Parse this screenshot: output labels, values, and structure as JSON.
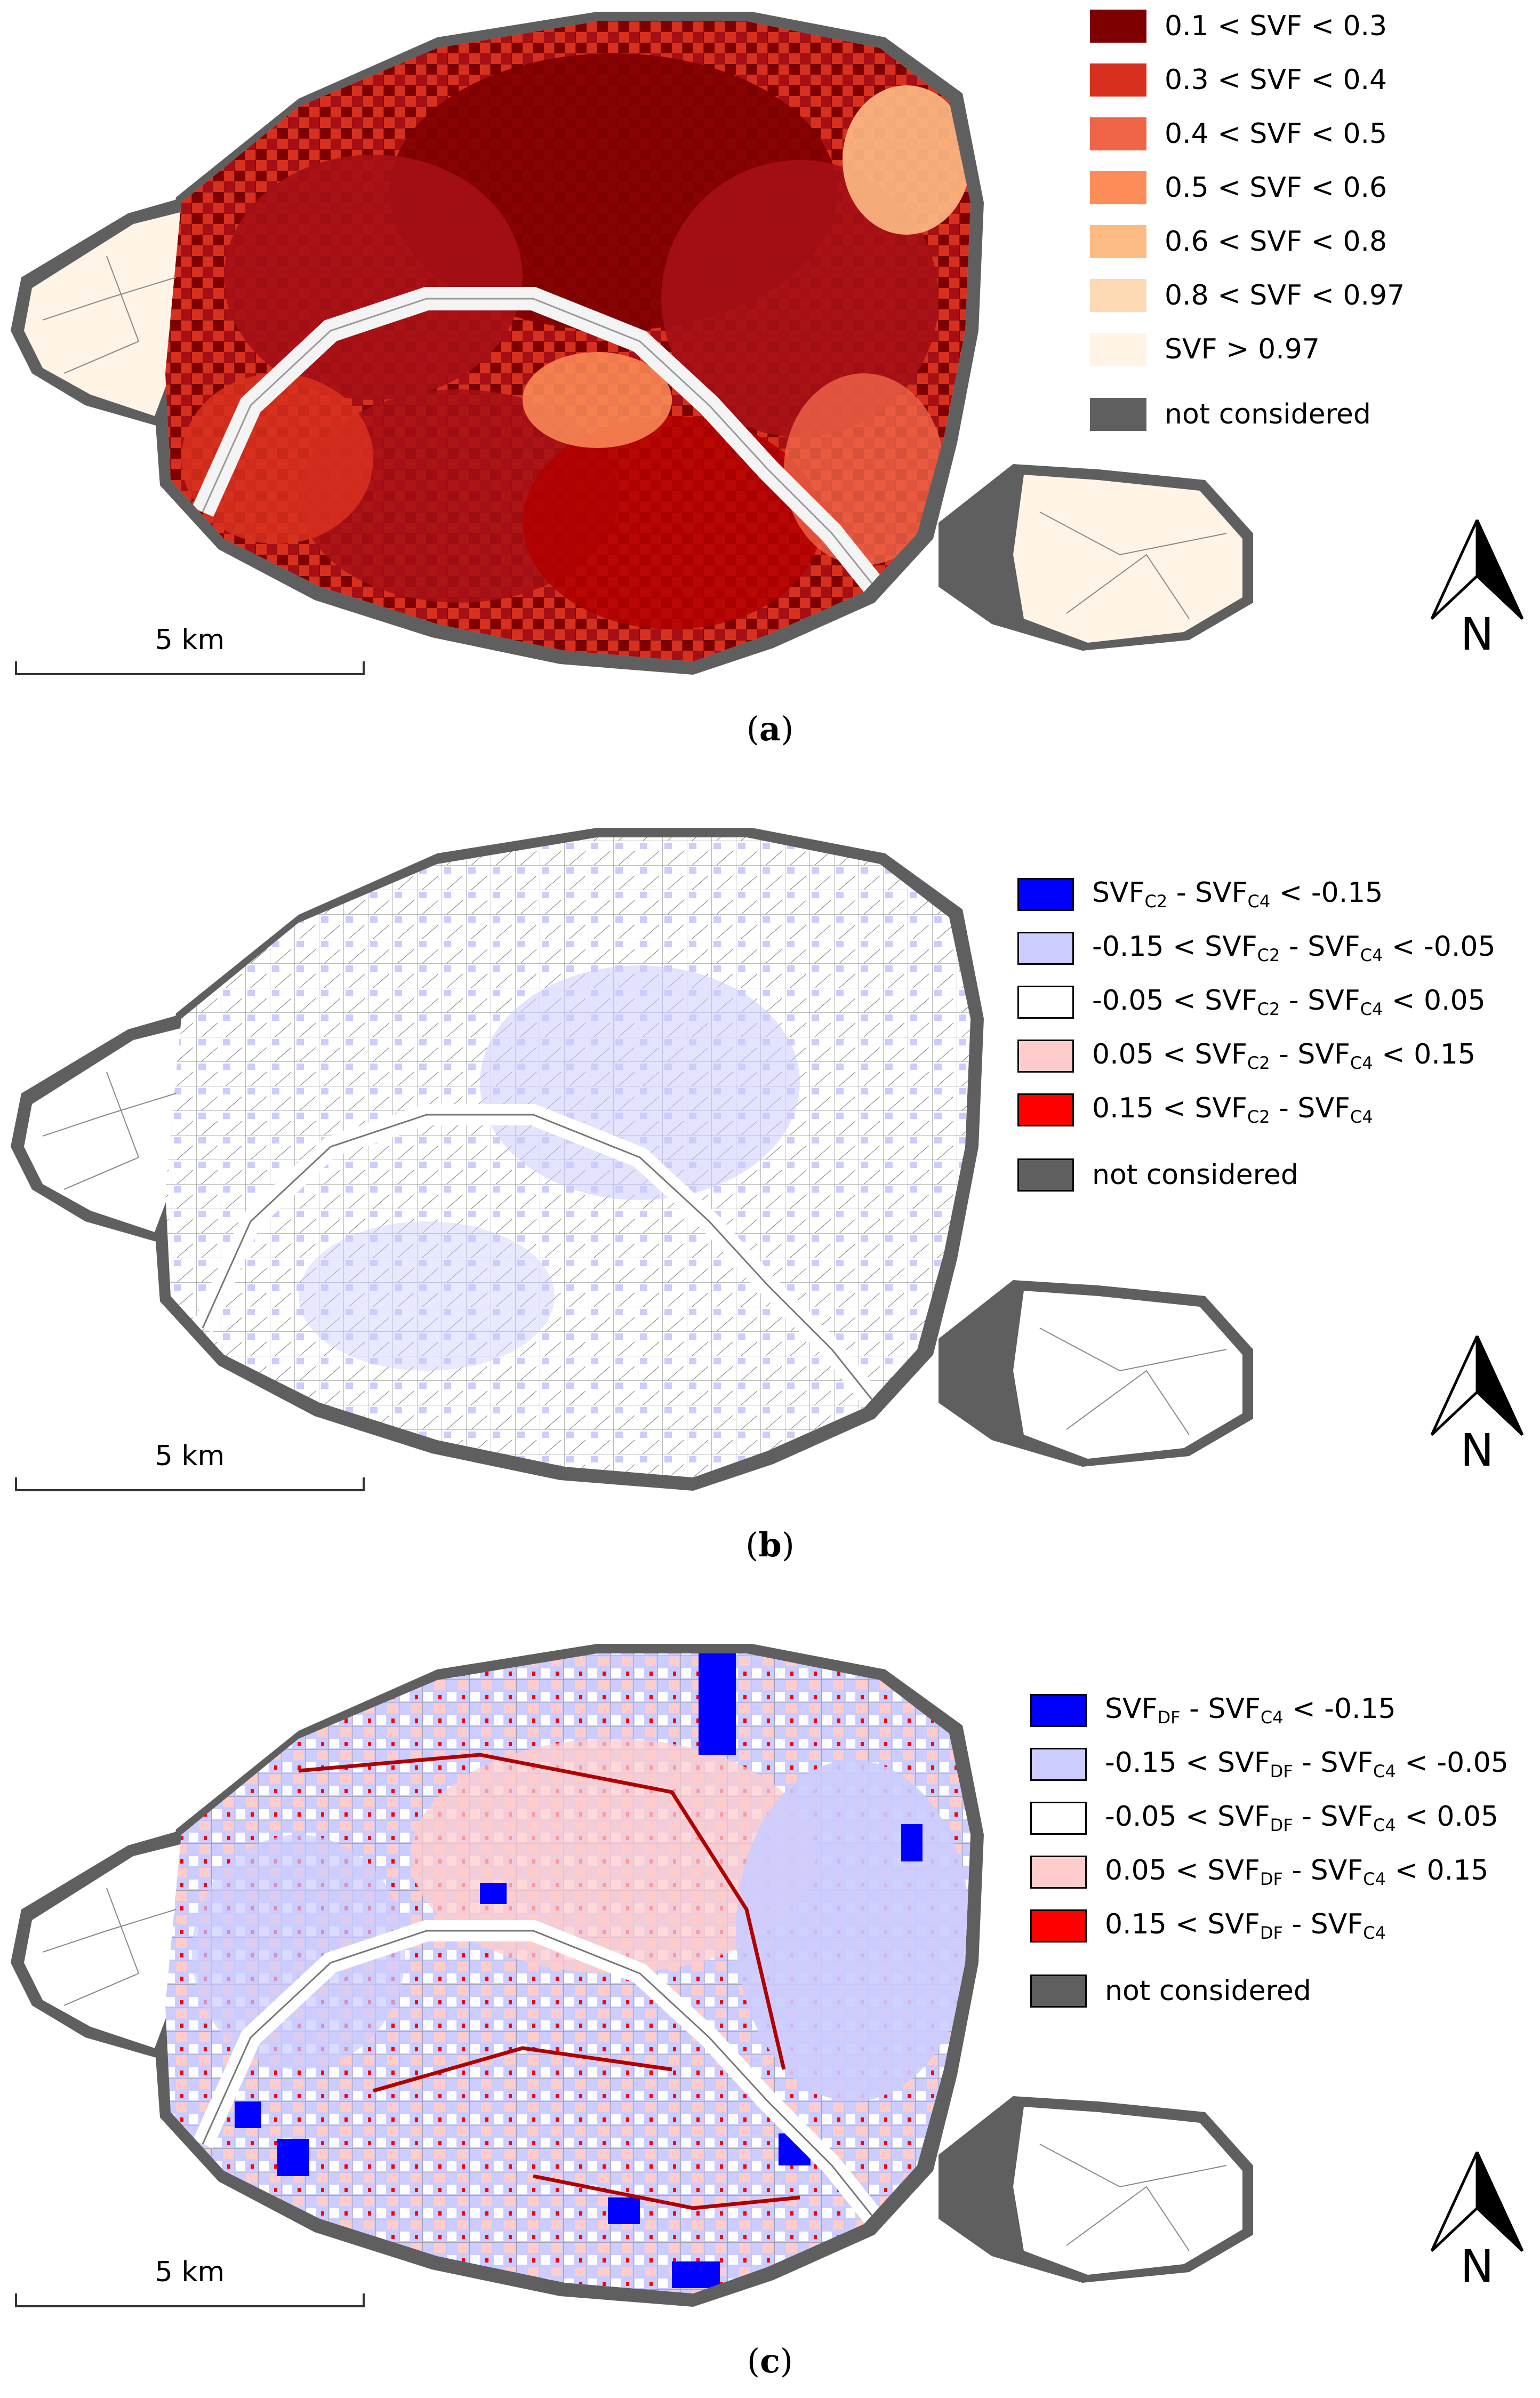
{
  "panels": [
    {
      "id": "a",
      "caption_letter": "a",
      "scale_label": "5 km",
      "north_label": "N",
      "legend": [
        {
          "label": "0.1 < SVF < 0.3",
          "color": "#7f0000"
        },
        {
          "label": "0.3 < SVF < 0.4",
          "color": "#d7301f"
        },
        {
          "label": "0.4 < SVF < 0.5",
          "color": "#ef6548"
        },
        {
          "label": "0.5 < SVF < 0.6",
          "color": "#fc8d59"
        },
        {
          "label": "0.6 < SVF < 0.8",
          "color": "#fdbb84"
        },
        {
          "label": "0.8 < SVF < 0.97",
          "color": "#fdd9b4"
        },
        {
          "label": "SVF > 0.97",
          "color": "#fff4e6"
        },
        {
          "label": "not considered",
          "color": "#5f5f5f"
        }
      ]
    },
    {
      "id": "b",
      "caption_letter": "b",
      "scale_label": "5 km",
      "north_label": "N",
      "legend": [
        {
          "color": "#0000ff",
          "parts": [
            "SVF",
            "C2",
            " - SVF",
            "C4",
            " < -0.15"
          ]
        },
        {
          "color": "#ccccff",
          "parts": [
            "-0.15 < SVF",
            "C2",
            " - SVF",
            "C4",
            " < -0.05"
          ]
        },
        {
          "color": "#ffffff",
          "parts": [
            "-0.05 < SVF",
            "C2",
            " - SVF",
            "C4",
            " < 0.05"
          ]
        },
        {
          "color": "#ffcccc",
          "parts": [
            "0.05 < SVF",
            "C2",
            " - SVF",
            "C4",
            " < 0.15"
          ]
        },
        {
          "color": "#ff0000",
          "parts": [
            "0.15 < SVF",
            "C2",
            " - SVF",
            "C4",
            ""
          ]
        },
        {
          "color": "#5f5f5f",
          "parts": [
            "not considered"
          ]
        }
      ]
    },
    {
      "id": "c",
      "caption_letter": "c",
      "scale_label": "5 km",
      "north_label": "N",
      "legend": [
        {
          "color": "#0000ff",
          "parts": [
            "SVF",
            "DF",
            " - SVF",
            "C4",
            " < -0.15"
          ]
        },
        {
          "color": "#ccccff",
          "parts": [
            "-0.15 < SVF",
            "DF",
            " - SVF",
            "C4",
            " < -0.05"
          ]
        },
        {
          "color": "#ffffff",
          "parts": [
            "-0.05 < SVF",
            "DF",
            " - SVF",
            "C4",
            " < 0.05"
          ]
        },
        {
          "color": "#ffcccc",
          "parts": [
            "0.05 < SVF",
            "DF",
            " - SVF",
            "C4",
            " < 0.15"
          ]
        },
        {
          "color": "#ff0000",
          "parts": [
            "0.15 < SVF",
            "DF",
            " - SVF",
            "C4",
            ""
          ]
        },
        {
          "color": "#5f5f5f",
          "parts": [
            "not considered"
          ]
        }
      ]
    }
  ]
}
